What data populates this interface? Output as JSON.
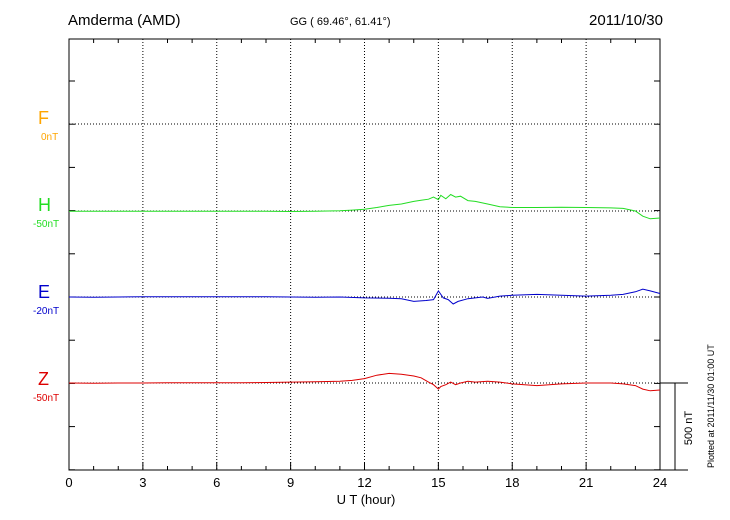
{
  "header": {
    "station": "Amderma (AMD)",
    "coords": "GG ( 69.46°,  61.41°)",
    "date": "2011/10/30"
  },
  "footer": {
    "plotted": "Plotted at 2011/11/30 01:00 UT"
  },
  "chart_data": {
    "type": "line",
    "title": "",
    "xlabel": "U T (hour)",
    "ylabel": "",
    "xlim": [
      0,
      24
    ],
    "x_ticks": [
      "0",
      "3",
      "6",
      "9",
      "12",
      "15",
      "18",
      "21",
      "24"
    ],
    "grid": true,
    "scale_bar_label": "500 nT",
    "colors": {
      "F": "#ffa500",
      "H": "#22dd22",
      "E": "#0000cc",
      "Z": "#dd0000"
    },
    "series": [
      {
        "name": "F",
        "baseline_label": "0nT",
        "x": [],
        "y": []
      },
      {
        "name": "H",
        "baseline_label": "-50nT",
        "x": [
          0,
          1,
          2,
          3,
          4,
          5,
          6,
          7,
          8,
          9,
          10,
          11,
          11.5,
          12,
          12.5,
          13,
          13.5,
          14,
          14.3,
          14.6,
          14.8,
          15,
          15.1,
          15.3,
          15.5,
          15.7,
          15.9,
          16.2,
          16.5,
          17,
          17.5,
          18,
          19,
          20,
          21,
          22,
          22.5,
          23,
          23.3,
          23.6,
          24
        ],
        "y": [
          -52,
          -52,
          -52,
          -51,
          -51,
          -52,
          -52,
          -52,
          -52,
          -53,
          -52,
          -48,
          -45,
          -40,
          -30,
          -18,
          -10,
          5,
          12,
          18,
          30,
          15,
          40,
          20,
          45,
          30,
          35,
          10,
          5,
          -10,
          -25,
          -30,
          -30,
          -28,
          -30,
          -32,
          -35,
          -50,
          -80,
          -95,
          -90
        ]
      },
      {
        "name": "E",
        "baseline_label": "-20nT",
        "x": [
          0,
          1,
          2,
          3,
          4,
          5,
          6,
          7,
          8,
          9,
          10,
          11,
          12,
          13,
          13.5,
          14,
          14.5,
          14.8,
          15,
          15.2,
          15.4,
          15.6,
          15.8,
          16.2,
          16.8,
          17,
          17.5,
          18,
          19,
          20,
          21,
          22,
          22.5,
          23,
          23.3,
          23.6,
          24
        ],
        "y": [
          -20,
          -22,
          -20,
          -18,
          -18,
          -19,
          -18,
          -18,
          -19,
          -20,
          -21,
          -20,
          -25,
          -27,
          -30,
          -45,
          -40,
          -35,
          15,
          -25,
          -35,
          -60,
          -45,
          -30,
          -20,
          -28,
          -15,
          -10,
          -5,
          -10,
          -15,
          -10,
          -5,
          10,
          25,
          15,
          0
        ]
      },
      {
        "name": "Z",
        "baseline_label": "-50nT",
        "x": [
          0,
          1,
          2,
          3,
          4,
          5,
          6,
          7,
          8,
          9,
          10,
          11,
          11.5,
          12,
          12.5,
          13,
          13.5,
          14,
          14.3,
          14.6,
          14.8,
          15,
          15.1,
          15.3,
          15.5,
          15.7,
          15.9,
          16.2,
          16.5,
          17,
          17.5,
          18,
          19,
          19.5,
          20,
          21,
          22,
          22.5,
          23,
          23.3,
          23.6,
          24
        ],
        "y": [
          -50,
          -51,
          -50,
          -50,
          -49,
          -49,
          -48,
          -48,
          -47,
          -45,
          -43,
          -40,
          -35,
          -25,
          -5,
          5,
          0,
          -10,
          -20,
          -45,
          -60,
          -85,
          -70,
          -60,
          -45,
          -60,
          -50,
          -40,
          -45,
          -40,
          -45,
          -55,
          -65,
          -60,
          -55,
          -50,
          -50,
          -55,
          -65,
          -85,
          -95,
          -90
        ]
      }
    ]
  }
}
